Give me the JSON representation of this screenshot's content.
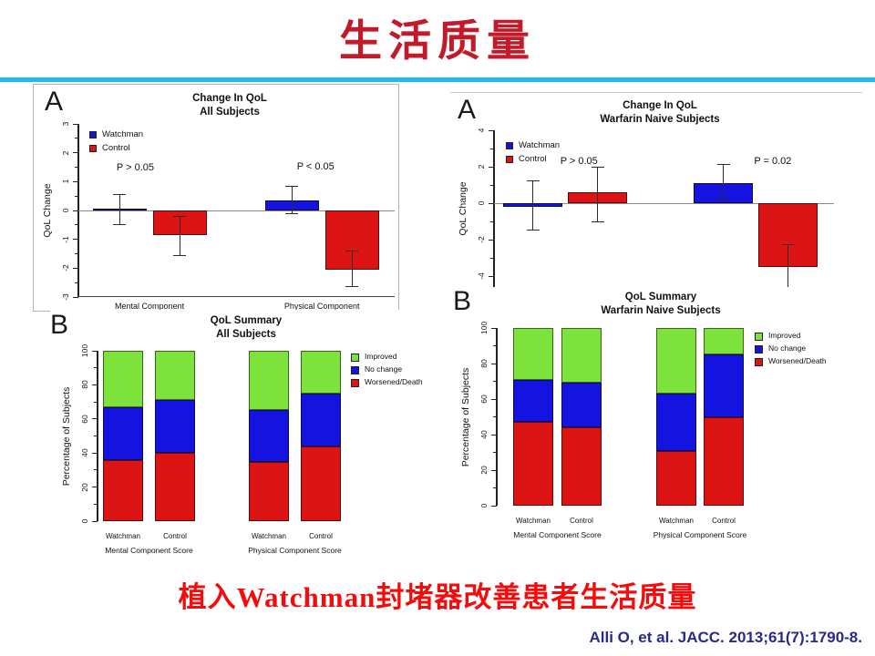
{
  "slide": {
    "title": "生活质量",
    "conclusion": "植入Watchman封堵器改善患者生活质量",
    "citation": "Alli O, et al. JACC. 2013;61(7):1790-8.",
    "colors": {
      "title_red": "#C11A2B",
      "rule_cyan": "#1CBEEC",
      "conclusion_red": "#F50B0B",
      "citation_navy": "#29298C",
      "watchman_blue": "#1413E0",
      "control_red": "#DC1414",
      "improved_green": "#7DE23C"
    }
  },
  "chart_data": [
    {
      "id": "change-qol-all",
      "panel_letter": "A",
      "type": "bar",
      "title": "Change In QoL",
      "subtitle": "All Subjects",
      "ylabel": "QoL Change",
      "ylim": [
        -3,
        3
      ],
      "yticks": [
        3,
        2,
        1,
        0,
        -1,
        -2,
        -3
      ],
      "groups": [
        "Mental Component",
        "Physical Component"
      ],
      "legend": [
        {
          "name": "Watchman",
          "color": "#1413E0"
        },
        {
          "name": "Control",
          "color": "#DC1414"
        }
      ],
      "series": [
        {
          "name": "Watchman",
          "color": "#1413E0",
          "values": [
            0.05,
            0.35
          ],
          "err_low": [
            -0.5,
            -0.1
          ],
          "err_high": [
            0.55,
            0.85
          ]
        },
        {
          "name": "Control",
          "color": "#DC1414",
          "values": [
            -0.85,
            -2.05
          ],
          "err_low": [
            -1.55,
            -2.65
          ],
          "err_high": [
            -0.2,
            -1.4
          ]
        }
      ],
      "annotations": [
        {
          "text": "P > 0.05",
          "group": 0,
          "y": 1.45
        },
        {
          "text": "P < 0.05",
          "group": 1,
          "y": 1.5
        }
      ]
    },
    {
      "id": "qol-summary-all",
      "panel_letter": "B",
      "type": "stacked-bar",
      "title": "QoL Summary",
      "subtitle": "All Subjects",
      "ylabel": "Percentage of Subjects",
      "ylim": [
        0,
        100
      ],
      "yticks": [
        0,
        20,
        40,
        60,
        80,
        100
      ],
      "groups": [
        "Mental Component Score",
        "Physical Component Score"
      ],
      "bar_labels": [
        "Watchman",
        "Control",
        "Watchman",
        "Control"
      ],
      "segments": [
        "Worsened/Death",
        "No change",
        "Improved"
      ],
      "segment_colors": [
        "#DC1414",
        "#1413E0",
        "#7DE23C"
      ],
      "legend": [
        {
          "name": "Improved",
          "color": "#7DE23C"
        },
        {
          "name": "No change",
          "color": "#1413E0"
        },
        {
          "name": "Worsened/Death",
          "color": "#DC1414"
        }
      ],
      "bars": [
        {
          "group": 0,
          "label": "Watchman",
          "values": [
            36,
            31,
            33
          ]
        },
        {
          "group": 0,
          "label": "Control",
          "values": [
            40,
            31,
            29
          ]
        },
        {
          "group": 1,
          "label": "Watchman",
          "values": [
            35,
            30,
            35
          ]
        },
        {
          "group": 1,
          "label": "Control",
          "values": [
            44,
            31,
            25
          ]
        }
      ]
    },
    {
      "id": "change-qol-warfarin-naive",
      "panel_letter": "A",
      "type": "bar",
      "title": "Change In QoL",
      "subtitle": "Warfarin Naive Subjects",
      "ylabel": "QoL Change",
      "ylim": [
        -4.6,
        4
      ],
      "yticks": [
        4,
        2,
        0,
        -2,
        -4
      ],
      "groups": [],
      "legend": [
        {
          "name": "Watchman",
          "color": "#1413E0"
        },
        {
          "name": "Control",
          "color": "#DC1414"
        }
      ],
      "series": [
        {
          "name": "Watchman",
          "color": "#1413E0",
          "values": [
            -0.2,
            1.1
          ],
          "err_low": [
            -1.45,
            0.25
          ],
          "err_high": [
            1.25,
            2.15
          ]
        },
        {
          "name": "Control",
          "color": "#DC1414",
          "values": [
            0.6,
            -3.5
          ],
          "err_low": [
            -1.0,
            -4.6
          ],
          "err_high": [
            2.0,
            -2.25
          ]
        }
      ],
      "annotations": [
        {
          "text": "P > 0.05",
          "group": 0,
          "y": 2.25
        },
        {
          "text": "P = 0.02",
          "group": 1,
          "y": 2.25
        }
      ]
    },
    {
      "id": "qol-summary-warfarin-naive",
      "panel_letter": "B",
      "type": "stacked-bar",
      "title": "QoL Summary",
      "subtitle": "Warfarin Naive Subjects",
      "ylabel": "Percentage of Subjects",
      "ylim": [
        0,
        100
      ],
      "yticks": [
        0,
        20,
        40,
        60,
        80,
        100
      ],
      "groups": [
        "Mental Component Score",
        "Physical Component Score"
      ],
      "bar_labels": [
        "Watchman",
        "Control",
        "Watchman",
        "Control"
      ],
      "segments": [
        "Worsened/Death",
        "No change",
        "Improved"
      ],
      "segment_colors": [
        "#DC1414",
        "#1413E0",
        "#7DE23C"
      ],
      "legend": [
        {
          "name": "Improved",
          "color": "#7DE23C"
        },
        {
          "name": "No change",
          "color": "#1413E0"
        },
        {
          "name": "Worsened/Death",
          "color": "#DC1414"
        }
      ],
      "bars": [
        {
          "group": 0,
          "label": "Watchman",
          "values": [
            47,
            24,
            29
          ]
        },
        {
          "group": 0,
          "label": "Control",
          "values": [
            44,
            25,
            31
          ]
        },
        {
          "group": 1,
          "label": "Watchman",
          "values": [
            31,
            32,
            37
          ]
        },
        {
          "group": 1,
          "label": "Control",
          "values": [
            50,
            35,
            15
          ]
        }
      ]
    }
  ]
}
